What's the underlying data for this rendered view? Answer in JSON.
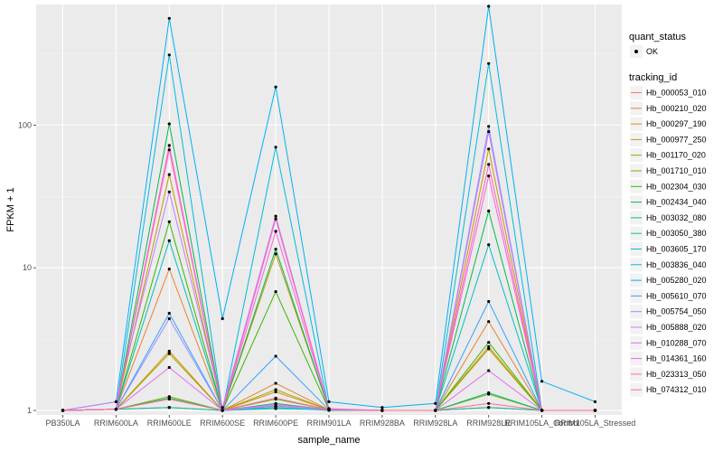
{
  "chart_data": {
    "type": "line",
    "title": "",
    "xlabel": "sample_name",
    "ylabel": "FPKM + 1",
    "y_scale": "log10",
    "ylim": [
      0.93,
      700
    ],
    "y_ticks": [
      1,
      10,
      100
    ],
    "y_tick_labels": [
      "1",
      "10",
      "100"
    ],
    "grid": true,
    "panel_background": "#ebebeb",
    "legend_position": "right",
    "categories": [
      "PB350LA",
      "RRIM600LA",
      "RRIM600LE",
      "RRIM600SE",
      "RRIM600PE",
      "RRIM901LA",
      "RRIM928BA",
      "RRIM928LA",
      "RRIM928LE",
      "RRIM105LA_Control",
      "RRIM105LA_Stressed"
    ],
    "quant_status_legend": {
      "title": "quant_status",
      "items": [
        {
          "label": "OK",
          "shape": "point",
          "color": "#000000"
        }
      ]
    },
    "tracking_legend_title": "tracking_id",
    "series": [
      {
        "name": "Hb_000053_010",
        "color": "#F8766D",
        "values": [
          1,
          1.02,
          1.05,
          1.0,
          1.08,
          1.01,
          1.0,
          1.0,
          1.05,
          1.0,
          1.0
        ]
      },
      {
        "name": "Hb_000210_020",
        "color": "#EA8331",
        "values": [
          1,
          1.02,
          9.8,
          1.0,
          1.55,
          1.01,
          1.0,
          1.0,
          4.2,
          1.0,
          1.0
        ]
      },
      {
        "name": "Hb_000297_190",
        "color": "#D89000",
        "values": [
          1,
          1.02,
          2.6,
          1.0,
          1.35,
          1.01,
          1.0,
          1.0,
          2.8,
          1.0,
          1.0
        ]
      },
      {
        "name": "Hb_000977_250",
        "color": "#C09B00",
        "values": [
          1,
          1.02,
          45,
          1.0,
          12.5,
          1.02,
          1.0,
          1.0,
          68,
          1.0,
          1.0
        ]
      },
      {
        "name": "Hb_001170_020",
        "color": "#A3A500",
        "values": [
          1,
          1.02,
          2.5,
          1.0,
          1.4,
          1.01,
          1.0,
          1.0,
          2.7,
          1.0,
          1.0
        ]
      },
      {
        "name": "Hb_001710_010",
        "color": "#7CAE00",
        "values": [
          1,
          1.02,
          1.25,
          1.0,
          1.2,
          1.01,
          1.0,
          1.0,
          1.3,
          1.0,
          1.0
        ]
      },
      {
        "name": "Hb_002304_030",
        "color": "#39B600",
        "values": [
          1,
          1.02,
          21,
          1.0,
          6.8,
          1.01,
          1.0,
          1.0,
          3.0,
          1.0,
          1.0
        ]
      },
      {
        "name": "Hb_002434_040",
        "color": "#00BB4E",
        "values": [
          1,
          1.02,
          102,
          1.0,
          13.5,
          1.01,
          1.0,
          1.0,
          25,
          1.0,
          1.0
        ]
      },
      {
        "name": "Hb_003032_080",
        "color": "#00BF7D",
        "values": [
          1,
          1.02,
          1.22,
          1.0,
          1.12,
          1.01,
          1.0,
          1.0,
          1.33,
          1.0,
          1.0
        ]
      },
      {
        "name": "Hb_003050_380",
        "color": "#00C1A3",
        "values": [
          1,
          1.02,
          1.05,
          1.0,
          1.03,
          1.01,
          1.0,
          1.0,
          1.05,
          1.0,
          1.0
        ]
      },
      {
        "name": "Hb_003605_170",
        "color": "#00BFC4",
        "values": [
          1,
          1.02,
          15.5,
          1.0,
          1.05,
          1.0,
          1.0,
          1.0,
          14.5,
          1.0,
          1.0
        ]
      },
      {
        "name": "Hb_003836_040",
        "color": "#00BAE0",
        "values": [
          1,
          1.02,
          310,
          1.0,
          70,
          1.01,
          1.0,
          1.0,
          270,
          1.0,
          1.0
        ]
      },
      {
        "name": "Hb_005280_020",
        "color": "#00B0F6",
        "values": [
          1,
          1.15,
          560,
          4.4,
          185,
          1.15,
          1.05,
          1.12,
          680,
          1.6,
          1.15
        ]
      },
      {
        "name": "Hb_005610_070",
        "color": "#35A2FF",
        "values": [
          1,
          1.02,
          4.8,
          1.0,
          2.4,
          1.01,
          1.0,
          1.0,
          5.8,
          1.0,
          1.0
        ]
      },
      {
        "name": "Hb_005754_050",
        "color": "#9590FF",
        "values": [
          1,
          1.02,
          4.4,
          1.0,
          1.07,
          1.01,
          1.0,
          1.0,
          98,
          1.0,
          1.0
        ]
      },
      {
        "name": "Hb_005888_020",
        "color": "#C77CFF",
        "values": [
          1,
          1.15,
          34,
          1.05,
          23,
          1.03,
          1.0,
          1.0,
          90,
          1.0,
          1.0
        ]
      },
      {
        "name": "Hb_010288_070",
        "color": "#E76BF3",
        "values": [
          1,
          1.02,
          2.0,
          1.0,
          1.1,
          1.01,
          1.0,
          1.0,
          1.9,
          1.0,
          1.0
        ]
      },
      {
        "name": "Hb_014361_160",
        "color": "#FA62DB",
        "values": [
          1,
          1.02,
          67,
          1.0,
          18,
          1.02,
          1.0,
          1.0,
          44,
          1.0,
          1.0
        ]
      },
      {
        "name": "Hb_023313_050",
        "color": "#FF62BC",
        "values": [
          1,
          1.02,
          72,
          1.0,
          22,
          1.02,
          1.0,
          1.0,
          53,
          1.0,
          1.0
        ]
      },
      {
        "name": "Hb_074312_010",
        "color": "#FF6C91",
        "values": [
          1,
          1.02,
          1.2,
          1.0,
          1.22,
          1.01,
          1.0,
          1.0,
          1.12,
          1.0,
          1.0
        ]
      }
    ]
  }
}
